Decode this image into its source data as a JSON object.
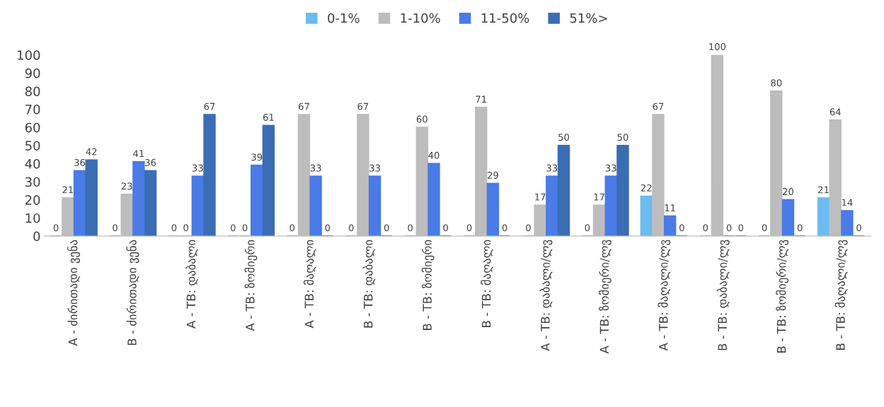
{
  "chart_data": {
    "type": "bar",
    "categories": [
      "A - ძირითადი ვენა",
      "B - ძირითადი ვენა",
      "A - TB: დაბალი",
      "A - TB: ზომიერი",
      "A - TB: მაღალი",
      "B - TB: დაბალი",
      "B - TB: ზომიერი",
      "B - TB: მაღალი",
      "A - TB: დაბალი/ლვ",
      "A - TB: ზომიერი/ლვ",
      "A - TB: მაღალი/ლვ",
      "B - TB: დაბალი/ლვ",
      "B - TB: ზომიერი/ლვ",
      "B - TB: მაღალი/ლვ"
    ],
    "series": [
      {
        "name": "0-1%",
        "color": "#6cbcf0",
        "values": [
          0,
          0,
          0,
          0,
          0,
          0,
          0,
          0,
          0,
          0,
          22,
          0,
          0,
          21
        ]
      },
      {
        "name": "1-10%",
        "color": "#bdbdbd",
        "values": [
          21,
          23,
          0,
          0,
          67,
          67,
          60,
          71,
          17,
          17,
          67,
          100,
          80,
          64
        ]
      },
      {
        "name": "11-50%",
        "color": "#4a7be6",
        "values": [
          36,
          41,
          33,
          39,
          33,
          33,
          40,
          29,
          33,
          33,
          11,
          0,
          20,
          14
        ]
      },
      {
        "name": "51%>",
        "color": "#3a6db4",
        "values": [
          42,
          36,
          67,
          61,
          0,
          0,
          0,
          0,
          50,
          50,
          0,
          0,
          0,
          0
        ]
      }
    ],
    "ylim": [
      0,
      100
    ],
    "yticks": [
      0,
      10,
      20,
      30,
      40,
      50,
      60,
      70,
      80,
      90,
      100
    ],
    "data_labels": true,
    "grid": false,
    "legend": "top"
  }
}
